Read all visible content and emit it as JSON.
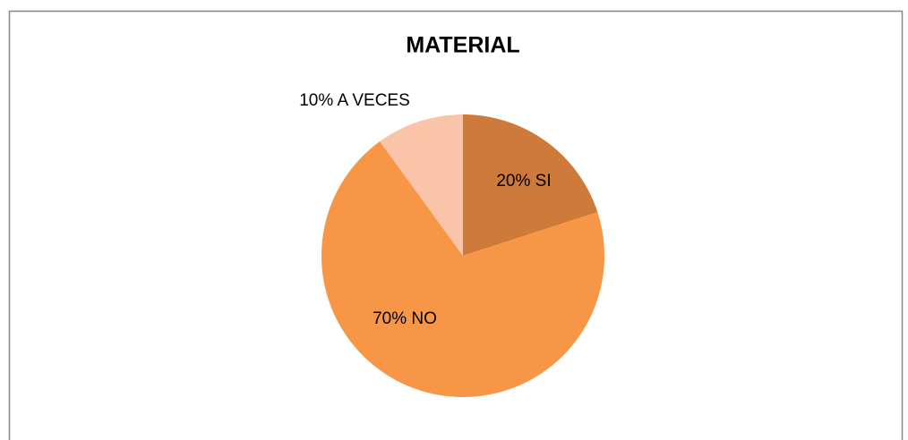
{
  "chart_data": {
    "type": "pie",
    "title": "MATERIAL",
    "categories": [
      "SI",
      "NO",
      "A VECES"
    ],
    "values": [
      20,
      70,
      10
    ],
    "value_labels": [
      "20% SI",
      "70% NO",
      "10% A VECES"
    ],
    "colors": [
      "#cd7a3a",
      "#f79646",
      "#fac4a8"
    ]
  }
}
